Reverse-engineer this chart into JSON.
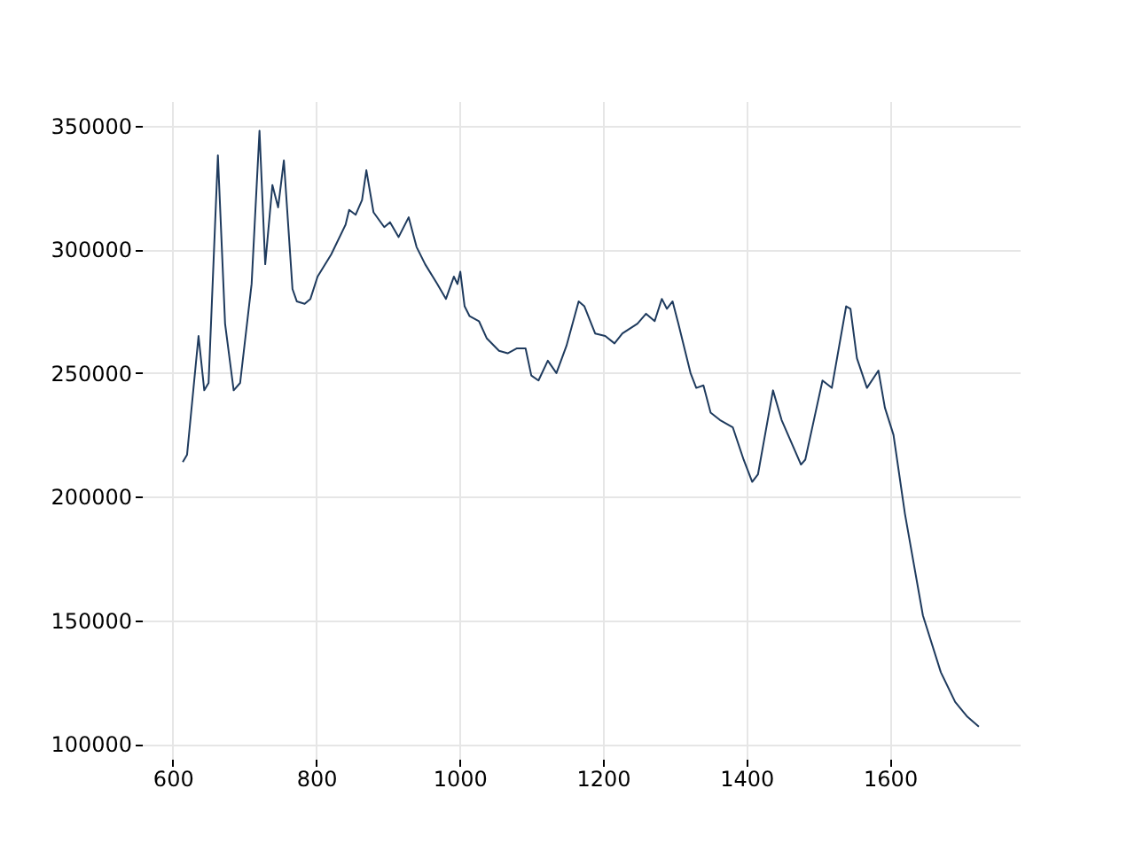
{
  "chart_data": {
    "type": "line",
    "grid": true,
    "marker": "none",
    "line_style": "solid",
    "xlim": [
      557,
      1781
    ],
    "ylim": [
      94000,
      360000
    ],
    "xticks": [
      600,
      800,
      1000,
      1200,
      1400,
      1600
    ],
    "yticks": [
      100000,
      150000,
      200000,
      250000,
      300000,
      350000
    ],
    "series": [
      {
        "color": "#1f3b5e",
        "x": [
          614,
          620,
          636,
          644,
          650,
          663,
          673,
          685,
          694,
          710,
          721,
          729,
          739,
          747,
          755,
          767,
          773,
          784,
          792,
          802,
          821,
          841,
          846,
          855,
          864,
          870,
          880,
          895,
          903,
          915,
          929,
          940,
          952,
          969,
          981,
          992,
          997,
          1001,
          1007,
          1014,
          1027,
          1038,
          1055,
          1067,
          1080,
          1092,
          1100,
          1110,
          1123,
          1135,
          1149,
          1166,
          1174,
          1189,
          1203,
          1216,
          1227,
          1248,
          1260,
          1272,
          1282,
          1289,
          1297,
          1305,
          1322,
          1330,
          1340,
          1350,
          1363,
          1381,
          1396,
          1408,
          1416,
          1437,
          1449,
          1476,
          1482,
          1494,
          1506,
          1519,
          1539,
          1545,
          1554,
          1568,
          1584,
          1593,
          1605,
          1621,
          1646,
          1671,
          1691,
          1708,
          1724
        ],
        "values": [
          214000,
          217000,
          265000,
          243000,
          246000,
          338000,
          270000,
          243000,
          246000,
          286000,
          348000,
          294000,
          326000,
          317000,
          336000,
          284000,
          279000,
          278000,
          280000,
          289000,
          298000,
          310000,
          316000,
          314000,
          320000,
          332000,
          315000,
          309000,
          311000,
          305000,
          313000,
          301000,
          294000,
          286000,
          280000,
          289000,
          286000,
          291000,
          277000,
          273000,
          271000,
          264000,
          259000,
          258000,
          260000,
          260000,
          249000,
          247000,
          255000,
          250000,
          261000,
          279000,
          277000,
          266000,
          265000,
          262000,
          266000,
          270000,
          274000,
          271000,
          280000,
          276000,
          279000,
          270000,
          250000,
          244000,
          245000,
          234000,
          231000,
          228000,
          215000,
          206000,
          209000,
          243000,
          231000,
          213000,
          215000,
          231000,
          247000,
          244000,
          277000,
          276000,
          256000,
          244000,
          251000,
          236000,
          225000,
          193000,
          152000,
          129000,
          117000,
          111000,
          107000
        ]
      }
    ]
  }
}
